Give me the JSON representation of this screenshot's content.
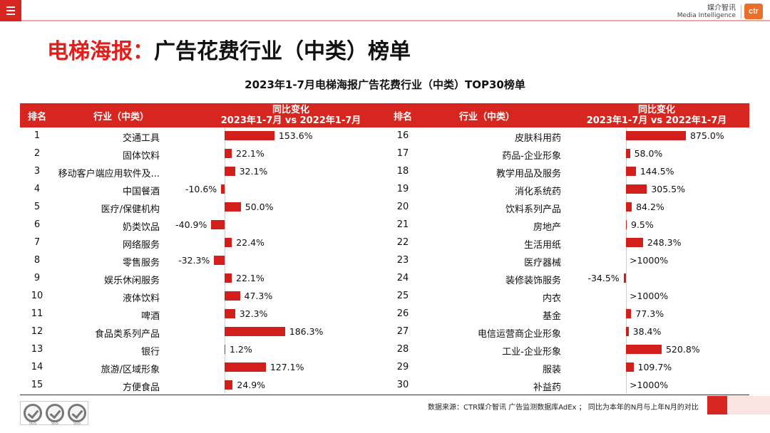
{
  "topbar": {
    "menu_icon": "hamburger-menu-icon"
  },
  "brand": {
    "cn": "媒介智讯",
    "en": "Media Intelligence",
    "logo": "ctr"
  },
  "page": {
    "title_red": "电梯海报：",
    "title_black": "广告花费行业（中类）榜单"
  },
  "chart_data": {
    "type": "bar",
    "title": "2023年1-7月电梯海报广告花费行业（中类）TOP30榜单",
    "columns": {
      "rank": "排名",
      "industry": "行业（中类）",
      "change_line1": "同比变化",
      "change_line2": "2023年1-7月 vs 2022年1-7月"
    },
    "unit": "%",
    "left": [
      {
        "rank": "1",
        "name": "交通工具",
        "value": 153.6,
        "label": "153.6%"
      },
      {
        "rank": "2",
        "name": "固体饮料",
        "value": 22.1,
        "label": "22.1%"
      },
      {
        "rank": "3",
        "name": "移动客户端应用软件及...",
        "value": 32.1,
        "label": "32.1%"
      },
      {
        "rank": "4",
        "name": "中国餐酒",
        "value": -10.6,
        "label": "-10.6%"
      },
      {
        "rank": "5",
        "name": "医疗/保健机构",
        "value": 50.0,
        "label": "50.0%"
      },
      {
        "rank": "6",
        "name": "奶类饮品",
        "value": -40.9,
        "label": "-40.9%"
      },
      {
        "rank": "7",
        "name": "网络服务",
        "value": 22.4,
        "label": "22.4%"
      },
      {
        "rank": "8",
        "name": "零售服务",
        "value": -32.3,
        "label": "-32.3%"
      },
      {
        "rank": "9",
        "name": "娱乐休闲服务",
        "value": 22.1,
        "label": "22.1%"
      },
      {
        "rank": "10",
        "name": "液体饮料",
        "value": 47.3,
        "label": "47.3%"
      },
      {
        "rank": "11",
        "name": "啤酒",
        "value": 32.3,
        "label": "32.3%"
      },
      {
        "rank": "12",
        "name": "食品类系列产品",
        "value": 186.3,
        "label": "186.3%"
      },
      {
        "rank": "13",
        "name": "银行",
        "value": 1.2,
        "label": "1.2%"
      },
      {
        "rank": "14",
        "name": "旅游/区域形象",
        "value": 127.1,
        "label": "127.1%"
      },
      {
        "rank": "15",
        "name": "方便食品",
        "value": 24.9,
        "label": "24.9%"
      }
    ],
    "right": [
      {
        "rank": "16",
        "name": "皮肤科用药",
        "value": 875.0,
        "label": "875.0%"
      },
      {
        "rank": "17",
        "name": "药品-企业形象",
        "value": 58.0,
        "label": "58.0%"
      },
      {
        "rank": "18",
        "name": "教学用品及服务",
        "value": 144.5,
        "label": "144.5%"
      },
      {
        "rank": "19",
        "name": "消化系统药",
        "value": 305.5,
        "label": "305.5%"
      },
      {
        "rank": "20",
        "name": "饮料系列产品",
        "value": 84.2,
        "label": "84.2%"
      },
      {
        "rank": "21",
        "name": "房地产",
        "value": 9.5,
        "label": "9.5%"
      },
      {
        "rank": "22",
        "name": "生活用纸",
        "value": 248.3,
        "label": "248.3%"
      },
      {
        "rank": "23",
        "name": "医疗器械",
        "value": null,
        "label": ">1000%"
      },
      {
        "rank": "24",
        "name": "装修装饰服务",
        "value": -34.5,
        "label": "-34.5%"
      },
      {
        "rank": "25",
        "name": "内衣",
        "value": null,
        "label": ">1000%"
      },
      {
        "rank": "26",
        "name": "基金",
        "value": 77.3,
        "label": "77.3%"
      },
      {
        "rank": "27",
        "name": "电信运营商企业形象",
        "value": 38.4,
        "label": "38.4%"
      },
      {
        "rank": "28",
        "name": "工业-企业形象",
        "value": 520.8,
        "label": "520.8%"
      },
      {
        "rank": "29",
        "name": "服装",
        "value": 109.7,
        "label": "109.7%"
      },
      {
        "rank": "30",
        "name": "补益药",
        "value": null,
        "label": ">1000%"
      }
    ]
  },
  "footer": {
    "source": "数据来源：CTR媒介智讯 广告监测数据库AdEx ； 同比为本年的N月与上年N月的对比",
    "cert_labels": [
      "SGS",
      "SGS",
      "SGS"
    ]
  },
  "colors": {
    "accent": "#d7261f",
    "bar": "#d21f1c",
    "title_red": "#e21d1a"
  }
}
